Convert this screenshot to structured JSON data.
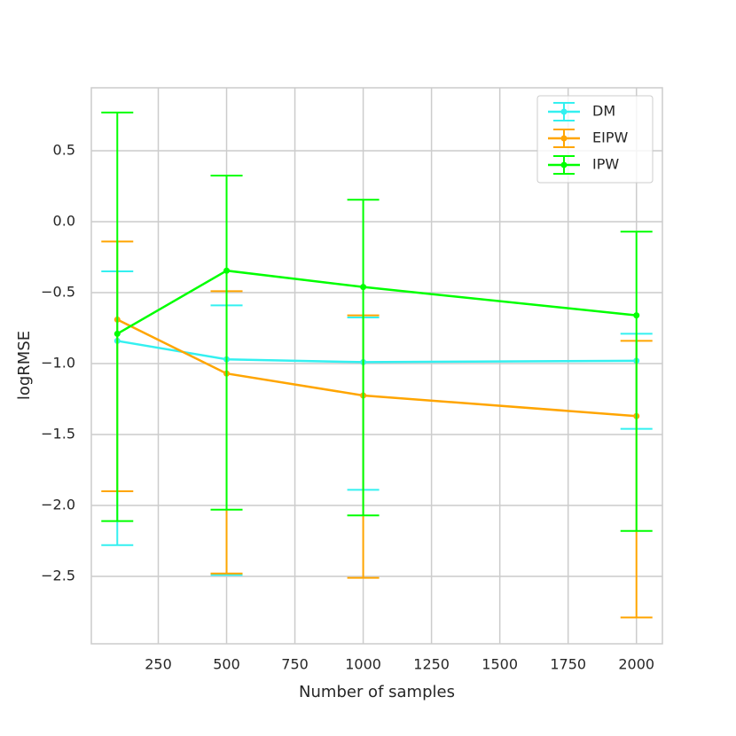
{
  "chart_data": {
    "type": "errorbar-line",
    "x_label": "Number of samples",
    "y_label": "logRMSE",
    "x": [
      100,
      500,
      1000,
      2000
    ],
    "xlim": [
      5,
      2095
    ],
    "xticks": [
      250,
      500,
      750,
      1000,
      1250,
      1500,
      1750,
      2000
    ],
    "ylim": [
      -2.975,
      0.944
    ],
    "yticks": [
      {
        "value": -2.5,
        "label": "−2.5"
      },
      {
        "value": -2.0,
        "label": "−2.0"
      },
      {
        "value": -1.5,
        "label": "−1.5"
      },
      {
        "value": -1.0,
        "label": "−1.0"
      },
      {
        "value": -0.5,
        "label": "−0.5"
      },
      {
        "value": 0,
        "label": "0.0"
      },
      {
        "value": 0.5,
        "label": "0.5"
      }
    ],
    "grid": true,
    "legend": "upper right",
    "series": [
      {
        "name": "DM",
        "color": "#33f0f0",
        "values": [
          -0.84,
          -0.97,
          -0.99,
          -0.98
        ],
        "upper": [
          -0.35,
          -0.59,
          -0.675,
          -0.79
        ],
        "lower": [
          -2.28,
          -2.49,
          -1.89,
          -1.46
        ]
      },
      {
        "name": "EIPW",
        "color": "#ffa500",
        "values": [
          -0.69,
          -1.07,
          -1.225,
          -1.37
        ],
        "upper": [
          -0.14,
          -0.49,
          -0.66,
          -0.84
        ],
        "lower": [
          -1.9,
          -2.48,
          -2.51,
          -2.79
        ]
      },
      {
        "name": "IPW",
        "color": "#00ff00",
        "values": [
          -0.79,
          -0.345,
          -0.46,
          -0.66
        ],
        "upper": [
          0.77,
          0.325,
          0.155,
          -0.07
        ],
        "lower": [
          -2.11,
          -2.03,
          -2.07,
          -2.18
        ]
      }
    ]
  }
}
